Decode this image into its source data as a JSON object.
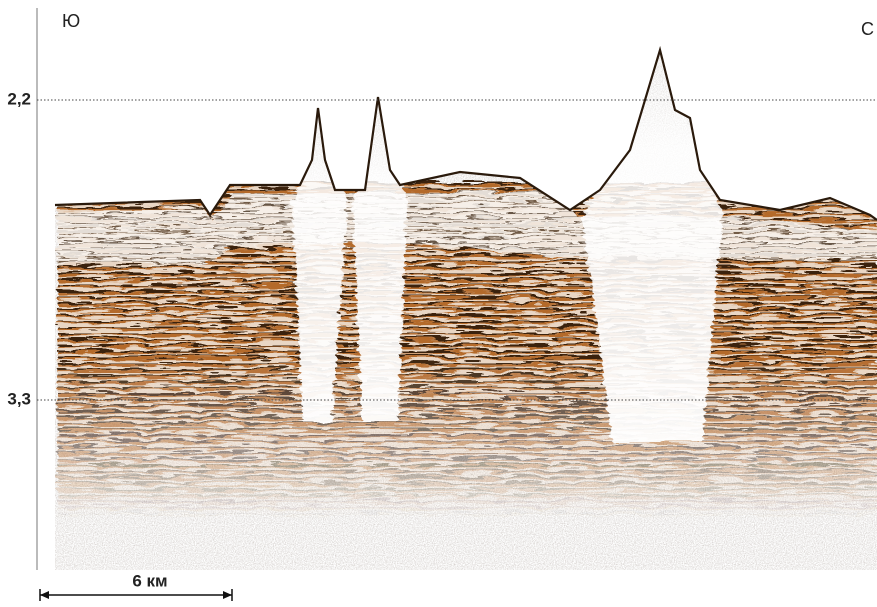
{
  "profile": {
    "left_label": "Ю",
    "right_label": "С"
  },
  "axis": {
    "ticks": [
      "2,2",
      "3,3"
    ]
  },
  "scale_bar": {
    "label": "6 км"
  }
}
